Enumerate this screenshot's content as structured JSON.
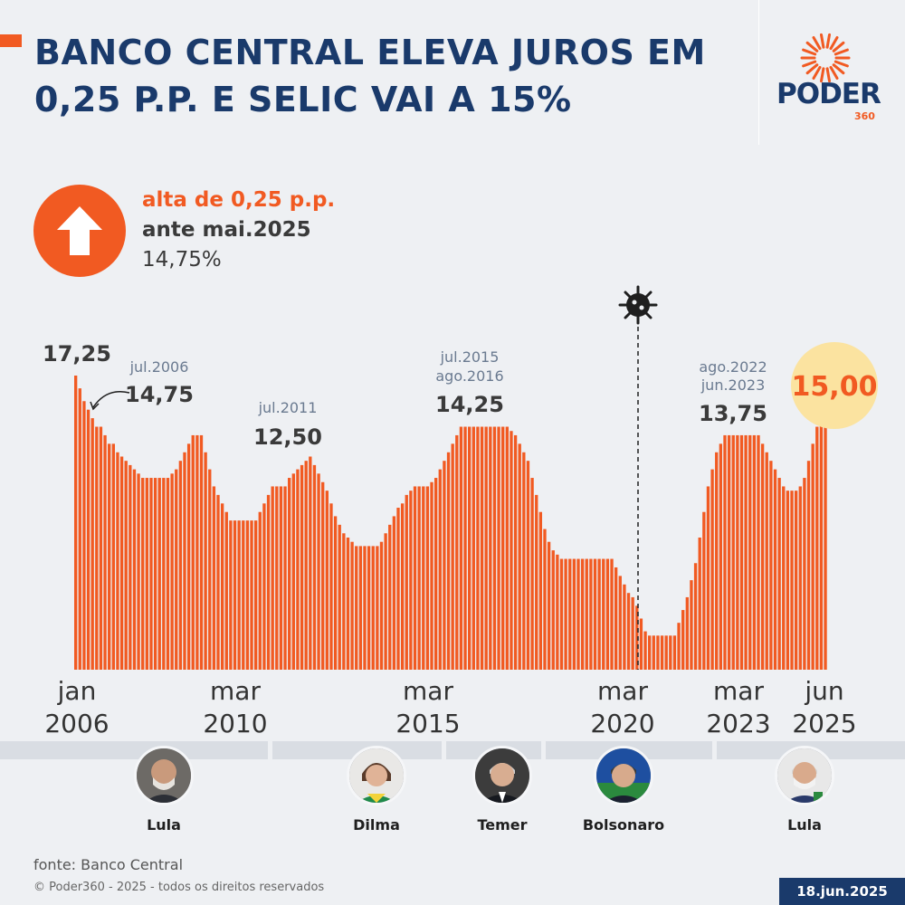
{
  "title": "BANCO CENTRAL ELEVA JUROS EM 0,25 P.P. E SELIC VAI A 15%",
  "logo": {
    "name": "PODER",
    "suffix": "360"
  },
  "highlight": {
    "change": "alta de 0,25 p.p.",
    "reference": "ante mai.2025",
    "previous": "14,75%",
    "icon": "arrow-up-icon"
  },
  "colors": {
    "accent": "#f15a22",
    "navy": "#1a3a6b",
    "highlight_bg": "#fbe3a0"
  },
  "chart_data": {
    "type": "bar",
    "ylim": [
      0,
      17.25
    ],
    "values": [
      17.25,
      16.5,
      15.75,
      15.25,
      14.75,
      14.25,
      14.25,
      13.75,
      13.25,
      13.25,
      12.75,
      12.5,
      12.25,
      12.0,
      11.75,
      11.5,
      11.25,
      11.25,
      11.25,
      11.25,
      11.25,
      11.25,
      11.25,
      11.5,
      11.75,
      12.25,
      12.75,
      13.25,
      13.75,
      13.75,
      13.75,
      12.75,
      11.75,
      10.75,
      10.25,
      9.75,
      9.25,
      8.75,
      8.75,
      8.75,
      8.75,
      8.75,
      8.75,
      8.75,
      9.25,
      9.75,
      10.25,
      10.75,
      10.75,
      10.75,
      10.75,
      11.25,
      11.5,
      11.75,
      12.0,
      12.25,
      12.5,
      12.0,
      11.5,
      11.0,
      10.5,
      9.75,
      9.0,
      8.5,
      8.0,
      7.75,
      7.5,
      7.25,
      7.25,
      7.25,
      7.25,
      7.25,
      7.25,
      7.5,
      8.0,
      8.5,
      9.0,
      9.5,
      9.75,
      10.25,
      10.5,
      10.75,
      10.75,
      10.75,
      10.75,
      11.0,
      11.25,
      11.75,
      12.25,
      12.75,
      13.25,
      13.75,
      14.25,
      14.25,
      14.25,
      14.25,
      14.25,
      14.25,
      14.25,
      14.25,
      14.25,
      14.25,
      14.25,
      14.25,
      14.0,
      13.75,
      13.25,
      12.75,
      12.25,
      11.25,
      10.25,
      9.25,
      8.25,
      7.5,
      7.0,
      6.75,
      6.5,
      6.5,
      6.5,
      6.5,
      6.5,
      6.5,
      6.5,
      6.5,
      6.5,
      6.5,
      6.5,
      6.5,
      6.5,
      6.0,
      5.5,
      5.0,
      4.5,
      4.25,
      3.75,
      3.0,
      2.25,
      2.0,
      2.0,
      2.0,
      2.0,
      2.0,
      2.0,
      2.0,
      2.75,
      3.5,
      4.25,
      5.25,
      6.25,
      7.75,
      9.25,
      10.75,
      11.75,
      12.75,
      13.25,
      13.75,
      13.75,
      13.75,
      13.75,
      13.75,
      13.75,
      13.75,
      13.75,
      13.75,
      13.25,
      12.75,
      12.25,
      11.75,
      11.25,
      10.75,
      10.5,
      10.5,
      10.5,
      10.75,
      11.25,
      12.25,
      13.25,
      14.25,
      14.75,
      15.0
    ],
    "axis_labels": [
      {
        "line1": "jan",
        "line2": "2006"
      },
      {
        "line1": "mar",
        "line2": "2010"
      },
      {
        "line1": "mar",
        "line2": "2015"
      },
      {
        "line1": "mar",
        "line2": "2020"
      },
      {
        "line1": "mar",
        "line2": "2023"
      },
      {
        "line1": "jun",
        "line2": "2025"
      }
    ],
    "annotations": [
      {
        "value": "17,25",
        "date": ""
      },
      {
        "value": "14,75",
        "date": "jul.2006"
      },
      {
        "value": "12,50",
        "date": "jul.2011"
      },
      {
        "value": "14,25",
        "date": "jul.2015",
        "date2": "ago.2016"
      },
      {
        "value": "13,75",
        "date": "ago.2022",
        "date2": "jun.2023"
      },
      {
        "value": "15,00",
        "date": ""
      }
    ],
    "event_icon": "virus-icon"
  },
  "presidents": [
    {
      "name": "Lula"
    },
    {
      "name": "Dilma"
    },
    {
      "name": "Temer"
    },
    {
      "name": "Bolsonaro"
    },
    {
      "name": "Lula"
    }
  ],
  "footer": {
    "source": "fonte: Banco Central",
    "copyright": "© Poder360 - 2025 - todos os direitos reservados",
    "date": "18.jun.2025"
  }
}
